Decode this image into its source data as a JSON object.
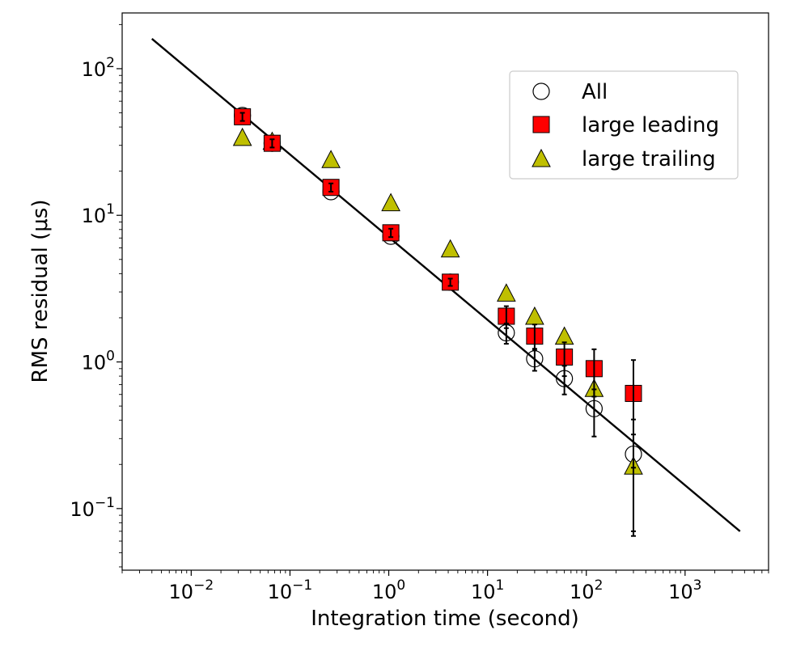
{
  "chart_data": {
    "type": "scatter",
    "xlabel": "Integration time (second)",
    "ylabel": "RMS residual (μs)",
    "xscale": "log",
    "yscale": "log",
    "xlim": [
      0.002,
      7000
    ],
    "ylim": [
      0.038,
      240
    ],
    "grid": false,
    "legend_position": "upper-right",
    "x_tick_labels": [
      {
        "base": "10",
        "exp": "−2",
        "value": 0.01
      },
      {
        "base": "10",
        "exp": "−1",
        "value": 0.1
      },
      {
        "base": "10",
        "exp": "0",
        "value": 1
      },
      {
        "base": "10",
        "exp": "1",
        "value": 10
      },
      {
        "base": "10",
        "exp": "2",
        "value": 100
      },
      {
        "base": "10",
        "exp": "3",
        "value": 1000
      }
    ],
    "y_tick_labels": [
      {
        "base": "10",
        "exp": "−1",
        "value": 0.1
      },
      {
        "base": "10",
        "exp": "0",
        "value": 1
      },
      {
        "base": "10",
        "exp": "1",
        "value": 10
      },
      {
        "base": "10",
        "exp": "2",
        "value": 100
      }
    ],
    "fit_line": {
      "x": [
        0.004,
        3600
      ],
      "y": [
        160,
        0.07
      ],
      "color": "#000000"
    },
    "series": [
      {
        "name": "All",
        "marker": "circle",
        "fill": "none",
        "stroke": "#000000",
        "points": [
          {
            "x": 0.033,
            "y": 48
          },
          {
            "x": 0.066,
            "y": 31
          },
          {
            "x": 0.26,
            "y": 14.5
          },
          {
            "x": 1.05,
            "y": 7.2
          },
          {
            "x": 4.2,
            "y": 3.5
          },
          {
            "x": 15.5,
            "y": 1.58,
            "err": 0.25
          },
          {
            "x": 30,
            "y": 1.05,
            "err": 0.18
          },
          {
            "x": 60,
            "y": 0.77,
            "err": 0.17
          },
          {
            "x": 120,
            "y": 0.48,
            "err": 0.17
          },
          {
            "x": 300,
            "y": 0.235,
            "err": 0.17
          }
        ]
      },
      {
        "name": "large leading",
        "marker": "square",
        "fill": "#ff0000",
        "stroke": "#000000",
        "points": [
          {
            "x": 0.033,
            "y": 47,
            "err": 3
          },
          {
            "x": 0.066,
            "y": 31,
            "err": 2
          },
          {
            "x": 0.26,
            "y": 15.5,
            "err": 1
          },
          {
            "x": 1.05,
            "y": 7.6,
            "err": 0.5
          },
          {
            "x": 4.2,
            "y": 3.5,
            "err": 0.2
          },
          {
            "x": 15.5,
            "y": 2.05,
            "err": 0.35
          },
          {
            "x": 30,
            "y": 1.5,
            "err": 0.3
          },
          {
            "x": 60,
            "y": 1.08,
            "err": 0.28
          },
          {
            "x": 120,
            "y": 0.9,
            "err": 0.32
          },
          {
            "x": 300,
            "y": 0.61,
            "err": 0.42
          }
        ]
      },
      {
        "name": "large trailing",
        "marker": "triangle",
        "fill": "#bfbf00",
        "stroke": "#000000",
        "points": [
          {
            "x": 0.033,
            "y": 34
          },
          {
            "x": 0.066,
            "y": 32
          },
          {
            "x": 0.26,
            "y": 24
          },
          {
            "x": 1.05,
            "y": 12.2
          },
          {
            "x": 4.2,
            "y": 5.9
          },
          {
            "x": 15.5,
            "y": 2.95
          },
          {
            "x": 30,
            "y": 2.05
          },
          {
            "x": 60,
            "y": 1.5
          },
          {
            "x": 120,
            "y": 0.66
          },
          {
            "x": 300,
            "y": 0.195,
            "err": 0.125
          }
        ]
      }
    ]
  }
}
